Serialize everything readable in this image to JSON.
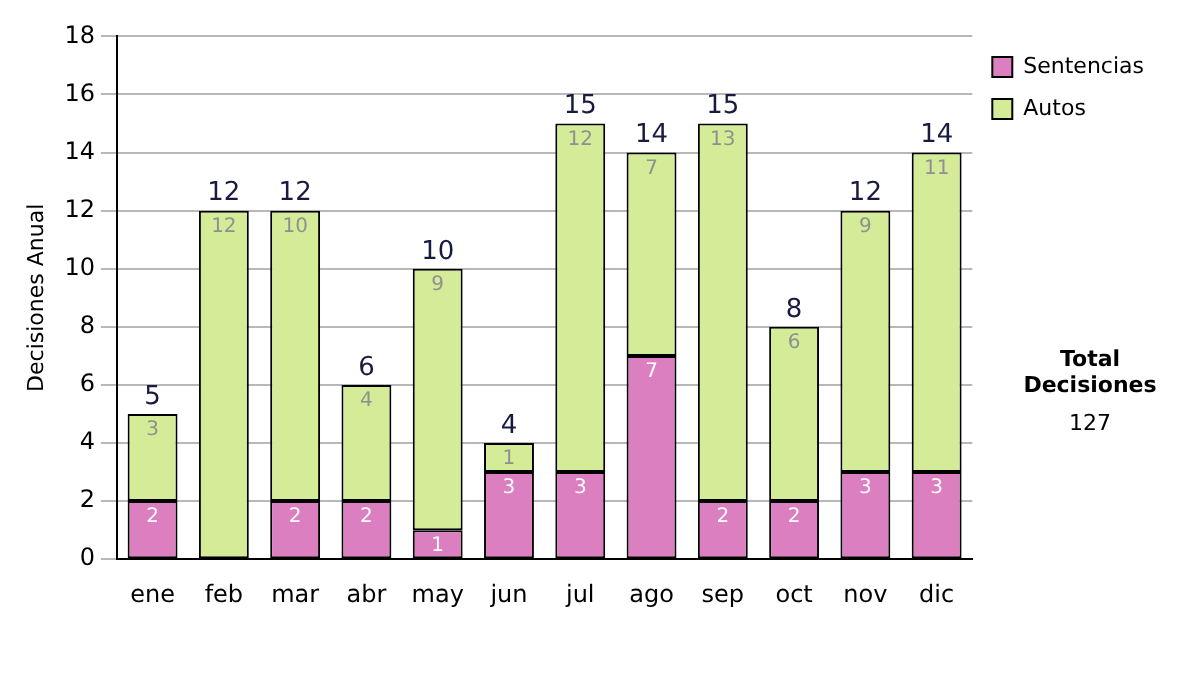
{
  "chart_data": {
    "type": "bar",
    "stacked": true,
    "ylabel": "Decisiones Anual",
    "categories": [
      "ene",
      "feb",
      "mar",
      "abr",
      "may",
      "jun",
      "jul",
      "ago",
      "sep",
      "oct",
      "nov",
      "dic"
    ],
    "series": [
      {
        "name": "Sentencias",
        "color": "#dc7fc0",
        "values": [
          2,
          0,
          2,
          2,
          1,
          3,
          3,
          7,
          2,
          2,
          3,
          3
        ],
        "value_labels": [
          "2",
          null,
          "2",
          "2",
          "1",
          "3",
          "3",
          "7",
          "2",
          "2",
          "3",
          "3"
        ]
      },
      {
        "name": "Autos",
        "color": "#d4eb97",
        "values": [
          3,
          12,
          10,
          4,
          9,
          1,
          12,
          7,
          13,
          6,
          9,
          11
        ],
        "value_labels": [
          "3",
          "12",
          "10",
          "4",
          "9",
          "1",
          "12",
          "7",
          "13",
          "6",
          "9",
          "11"
        ]
      }
    ],
    "totals": [
      "5",
      "12",
      "12",
      "6",
      "10",
      "4",
      "15",
      "14",
      "15",
      "8",
      "12",
      "14"
    ],
    "ylim": [
      0,
      18
    ],
    "yticks": [
      0,
      2,
      4,
      6,
      8,
      10,
      12,
      14,
      16,
      18
    ],
    "grid": "y",
    "legend": "right",
    "annotations": [
      "Total Decisiones",
      "127"
    ]
  }
}
